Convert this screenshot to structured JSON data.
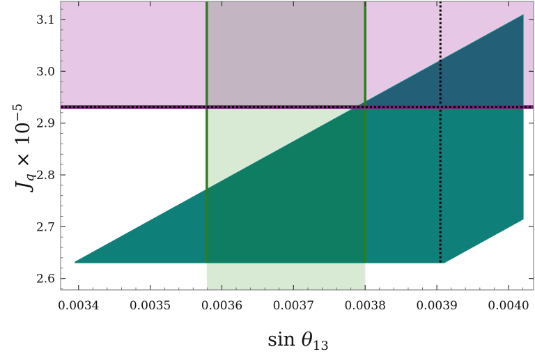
{
  "chart_data": {
    "type": "scatter",
    "xlabel": "sin θ₁₃",
    "ylabel": "J_q × 10⁻⁵",
    "xlim": [
      0.003375,
      0.004035
    ],
    "ylim": [
      2.578,
      3.135
    ],
    "x_ticks": [
      "0.0034",
      "0.0035",
      "0.0036",
      "0.0037",
      "0.0038",
      "0.0039",
      "0.0040"
    ],
    "x_tick_values": [
      0.0034,
      0.0035,
      0.0036,
      0.0037,
      0.0038,
      0.0039,
      0.004
    ],
    "y_ticks": [
      "2.6",
      "2.7",
      "2.8",
      "2.9",
      "3.0",
      "3.1"
    ],
    "y_tick_values": [
      2.6,
      2.7,
      2.8,
      2.9,
      3.0,
      3.1
    ],
    "scatter_region": {
      "color": "#0f8079",
      "vertices": [
        [
          0.003395,
          2.631
        ],
        [
          0.00391,
          2.631
        ],
        [
          0.00402,
          2.715
        ],
        [
          0.00402,
          3.108
        ],
        [
          0.003395,
          2.631
        ]
      ]
    },
    "shaded_bands": [
      {
        "name": "magenta-band",
        "color": "#e6c8e6",
        "x_range": [
          0.003375,
          0.004035
        ],
        "y_range": [
          2.931,
          3.135
        ]
      },
      {
        "name": "green-band",
        "color": "#d4e8cf",
        "x_range": [
          0.003579,
          0.0038
        ],
        "y_range": [
          2.578,
          3.135
        ]
      }
    ],
    "vertical_lines": [
      {
        "name": "green-line-left",
        "x": 0.003579,
        "color": "#2e7d1f",
        "style": "solid"
      },
      {
        "name": "green-line-right",
        "x": 0.0038,
        "color": "#2e7d1f",
        "style": "solid"
      },
      {
        "name": "black-dotted-line",
        "x": 0.003905,
        "color": "#000000",
        "style": "dotted"
      }
    ],
    "horizontal_lines": [
      {
        "name": "purple-line",
        "y": 2.931,
        "color": "#7a1f7a",
        "style": "solid"
      },
      {
        "name": "black-dotted-hline",
        "y": 2.931,
        "color": "#000000",
        "style": "dotted"
      }
    ]
  }
}
